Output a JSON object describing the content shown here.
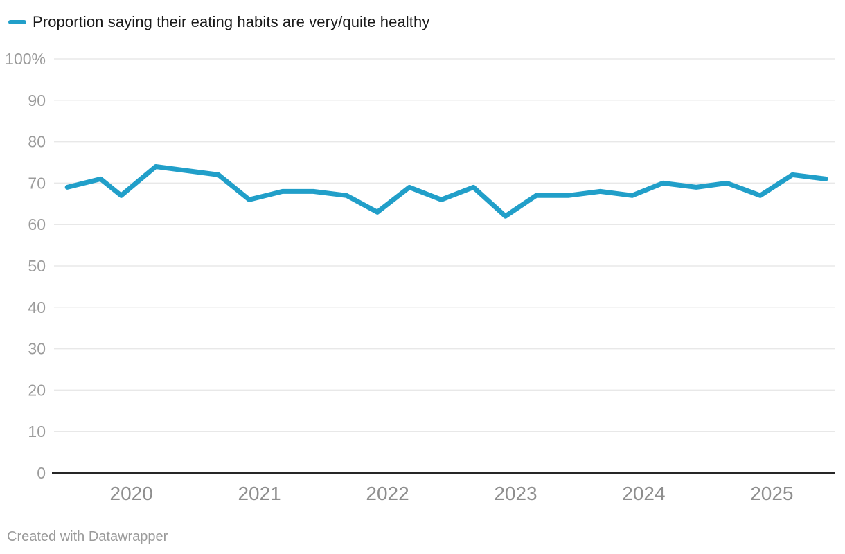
{
  "footer": {
    "attribution": "Created with Datawrapper"
  },
  "colors": {
    "background": "#ffffff",
    "line": "#219FC9",
    "grid": "#E8E8E8",
    "axis": "#262626",
    "y_tick_label": "#9B9B9B",
    "x_tick_label": "#8E8E8E",
    "legend_text": "#1A1A1A",
    "footer_text": "#9A9A9A"
  },
  "chart_data": {
    "type": "line",
    "title": "Proportion saying their eating habits are very/quite healthy",
    "legend_position": "top-left",
    "grid": true,
    "xlim": [
      2019.38,
      2025.49
    ],
    "ylim": [
      0,
      100
    ],
    "x_ticks": [
      {
        "value": 2020,
        "label": "2020"
      },
      {
        "value": 2021,
        "label": "2021"
      },
      {
        "value": 2022,
        "label": "2022"
      },
      {
        "value": 2023,
        "label": "2023"
      },
      {
        "value": 2024,
        "label": "2024"
      },
      {
        "value": 2025,
        "label": "2025"
      }
    ],
    "y_ticks": [
      {
        "value": 100,
        "label": "100%"
      },
      {
        "value": 90,
        "label": "90"
      },
      {
        "value": 80,
        "label": "80"
      },
      {
        "value": 70,
        "label": "70"
      },
      {
        "value": 60,
        "label": "60"
      },
      {
        "value": 50,
        "label": "50"
      },
      {
        "value": 40,
        "label": "40"
      },
      {
        "value": 30,
        "label": "30"
      },
      {
        "value": 20,
        "label": "20"
      },
      {
        "value": 10,
        "label": "10"
      },
      {
        "value": 0,
        "label": "0"
      }
    ],
    "series": [
      {
        "name": "Proportion saying their eating habits are very/quite healthy",
        "color": "#219FC9",
        "points": [
          {
            "x": 2019.5,
            "y": 69
          },
          {
            "x": 2019.76,
            "y": 71
          },
          {
            "x": 2019.92,
            "y": 67
          },
          {
            "x": 2020.19,
            "y": 74
          },
          {
            "x": 2020.68,
            "y": 72
          },
          {
            "x": 2020.92,
            "y": 66
          },
          {
            "x": 2021.18,
            "y": 68
          },
          {
            "x": 2021.42,
            "y": 68
          },
          {
            "x": 2021.68,
            "y": 67
          },
          {
            "x": 2021.92,
            "y": 63
          },
          {
            "x": 2022.17,
            "y": 69
          },
          {
            "x": 2022.42,
            "y": 66
          },
          {
            "x": 2022.67,
            "y": 69
          },
          {
            "x": 2022.92,
            "y": 62
          },
          {
            "x": 2023.16,
            "y": 67
          },
          {
            "x": 2023.41,
            "y": 67
          },
          {
            "x": 2023.66,
            "y": 68
          },
          {
            "x": 2023.91,
            "y": 67
          },
          {
            "x": 2024.15,
            "y": 70
          },
          {
            "x": 2024.41,
            "y": 69
          },
          {
            "x": 2024.65,
            "y": 70
          },
          {
            "x": 2024.91,
            "y": 67
          },
          {
            "x": 2025.16,
            "y": 72
          },
          {
            "x": 2025.42,
            "y": 71
          }
        ]
      }
    ]
  }
}
